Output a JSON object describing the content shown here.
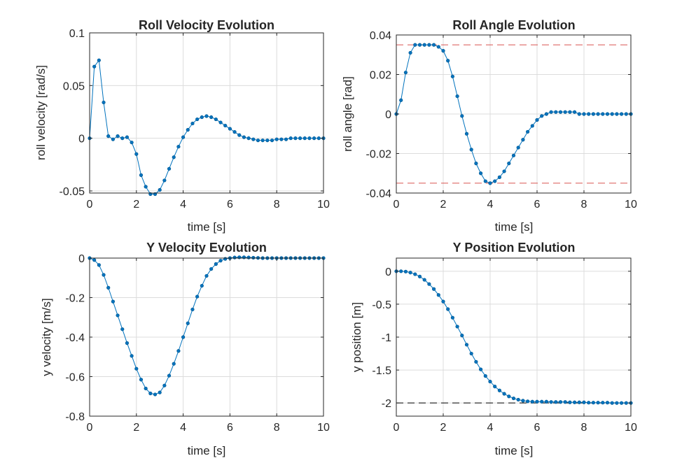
{
  "figure": {
    "colors": {
      "series": "#0072bd",
      "limit_red": "#d95350",
      "reference": "#000000",
      "grid": "#dcdcdc",
      "axes": "#262626"
    }
  },
  "chart_data": [
    {
      "type": "line",
      "title": "Roll Velocity Evolution",
      "xlabel": "time [s]",
      "ylabel": "roll velocity [rad/s]",
      "xlim": [
        0,
        10
      ],
      "ylim": [
        -0.052,
        0.1
      ],
      "xticks": [
        0,
        2,
        4,
        6,
        8,
        10
      ],
      "xtick_labels": [
        "0",
        "2",
        "4",
        "6",
        "8",
        "10"
      ],
      "yticks": [
        -0.05,
        0,
        0.05,
        0.1
      ],
      "ytick_labels": [
        "-0.05",
        "0",
        "0.05",
        "0.1"
      ],
      "grid": true,
      "marker": "dot",
      "x": [
        0,
        0.2,
        0.4,
        0.6,
        0.8,
        1.0,
        1.2,
        1.4,
        1.6,
        1.8,
        2.0,
        2.2,
        2.4,
        2.6,
        2.8,
        3.0,
        3.2,
        3.4,
        3.6,
        3.8,
        4.0,
        4.2,
        4.4,
        4.6,
        4.8,
        5.0,
        5.2,
        5.4,
        5.6,
        5.8,
        6.0,
        6.2,
        6.4,
        6.6,
        6.8,
        7.0,
        7.2,
        7.4,
        7.6,
        7.8,
        8.0,
        8.2,
        8.4,
        8.6,
        8.8,
        9.0,
        9.2,
        9.4,
        9.6,
        9.8,
        10.0
      ],
      "y": [
        0,
        0.068,
        0.074,
        0.034,
        0.002,
        -0.001,
        0.002,
        0,
        0.001,
        -0.004,
        -0.015,
        -0.035,
        -0.046,
        -0.053,
        -0.053,
        -0.049,
        -0.04,
        -0.029,
        -0.018,
        -0.008,
        0.001,
        0.008,
        0.014,
        0.018,
        0.02,
        0.021,
        0.02,
        0.018,
        0.015,
        0.012,
        0.009,
        0.006,
        0.003,
        0.001,
        0,
        -0.001,
        -0.002,
        -0.002,
        -0.002,
        -0.002,
        -0.001,
        -0.001,
        -0.001,
        0,
        0,
        0,
        0,
        0,
        0,
        0,
        0
      ],
      "reference_lines": []
    },
    {
      "type": "line",
      "title": "Roll Angle Evolution",
      "xlabel": "time [s]",
      "ylabel": "roll angle [rad]",
      "xlim": [
        0,
        10
      ],
      "ylim": [
        -0.04,
        0.04
      ],
      "xticks": [
        0,
        2,
        4,
        6,
        8,
        10
      ],
      "xtick_labels": [
        "0",
        "2",
        "4",
        "6",
        "8",
        "10"
      ],
      "yticks": [
        -0.04,
        -0.02,
        0,
        0.02,
        0.04
      ],
      "ytick_labels": [
        "-0.04",
        "-0.02",
        "0",
        "0.02",
        "0.04"
      ],
      "grid": true,
      "marker": "dot",
      "x": [
        0,
        0.2,
        0.4,
        0.6,
        0.8,
        1.0,
        1.2,
        1.4,
        1.6,
        1.8,
        2.0,
        2.2,
        2.4,
        2.6,
        2.8,
        3.0,
        3.2,
        3.4,
        3.6,
        3.8,
        4.0,
        4.2,
        4.4,
        4.6,
        4.8,
        5.0,
        5.2,
        5.4,
        5.6,
        5.8,
        6.0,
        6.2,
        6.4,
        6.6,
        6.8,
        7.0,
        7.2,
        7.4,
        7.6,
        7.8,
        8.0,
        8.2,
        8.4,
        8.6,
        8.8,
        9.0,
        9.2,
        9.4,
        9.6,
        9.8,
        10.0
      ],
      "y": [
        0,
        0.007,
        0.021,
        0.031,
        0.035,
        0.035,
        0.035,
        0.035,
        0.035,
        0.034,
        0.032,
        0.027,
        0.019,
        0.009,
        -0.001,
        -0.01,
        -0.018,
        -0.025,
        -0.03,
        -0.034,
        -0.035,
        -0.034,
        -0.032,
        -0.029,
        -0.025,
        -0.021,
        -0.017,
        -0.013,
        -0.009,
        -0.006,
        -0.003,
        -0.001,
        0.0,
        0.001,
        0.001,
        0.001,
        0.001,
        0.001,
        0.001,
        0.0,
        0.0,
        0.0,
        0.0,
        0.0,
        0.0,
        0.0,
        0.0,
        0.0,
        0.0,
        0.0,
        0.0
      ],
      "reference_lines": [
        {
          "y": 0.035,
          "color": "#d95350",
          "style": "dashed"
        },
        {
          "y": -0.035,
          "color": "#d95350",
          "style": "dashed"
        }
      ]
    },
    {
      "type": "line",
      "title": "Y Velocity Evolution",
      "xlabel": "time [s]",
      "ylabel": "y velocity [m/s]",
      "xlim": [
        0,
        10
      ],
      "ylim": [
        -0.8,
        0
      ],
      "xticks": [
        0,
        2,
        4,
        6,
        8,
        10
      ],
      "xtick_labels": [
        "0",
        "2",
        "4",
        "6",
        "8",
        "10"
      ],
      "yticks": [
        -0.8,
        -0.6,
        -0.4,
        -0.2,
        0
      ],
      "ytick_labels": [
        "-0.8",
        "-0.6",
        "-0.4",
        "-0.2",
        "0"
      ],
      "grid": true,
      "marker": "dot",
      "x": [
        0,
        0.2,
        0.4,
        0.6,
        0.8,
        1.0,
        1.2,
        1.4,
        1.6,
        1.8,
        2.0,
        2.2,
        2.4,
        2.6,
        2.8,
        3.0,
        3.2,
        3.4,
        3.6,
        3.8,
        4.0,
        4.2,
        4.4,
        4.6,
        4.8,
        5.0,
        5.2,
        5.4,
        5.6,
        5.8,
        6.0,
        6.2,
        6.4,
        6.6,
        6.8,
        7.0,
        7.2,
        7.4,
        7.6,
        7.8,
        8.0,
        8.2,
        8.4,
        8.6,
        8.8,
        9.0,
        9.2,
        9.4,
        9.6,
        9.8,
        10.0
      ],
      "y": [
        0,
        -0.01,
        -0.035,
        -0.085,
        -0.15,
        -0.22,
        -0.29,
        -0.36,
        -0.43,
        -0.495,
        -0.56,
        -0.615,
        -0.66,
        -0.685,
        -0.69,
        -0.68,
        -0.645,
        -0.595,
        -0.535,
        -0.47,
        -0.4,
        -0.33,
        -0.26,
        -0.195,
        -0.14,
        -0.09,
        -0.055,
        -0.03,
        -0.013,
        -0.004,
        0,
        0.003,
        0.004,
        0.004,
        0.003,
        0.002,
        0.001,
        0,
        0,
        0,
        0,
        0,
        0,
        0,
        0,
        0,
        0,
        0,
        0,
        0,
        0
      ],
      "reference_lines": []
    },
    {
      "type": "line",
      "title": "Y Position Evolution",
      "xlabel": "time [s]",
      "ylabel": "y position [m]",
      "xlim": [
        0,
        10
      ],
      "ylim": [
        -2.2,
        0.2
      ],
      "xticks": [
        0,
        2,
        4,
        6,
        8,
        10
      ],
      "xtick_labels": [
        "0",
        "2",
        "4",
        "6",
        "8",
        "10"
      ],
      "yticks": [
        -2,
        -1.5,
        -1,
        -0.5,
        0
      ],
      "ytick_labels": [
        "-2",
        "-1.5",
        "-1",
        "-0.5",
        "0"
      ],
      "grid": true,
      "marker": "dot",
      "x": [
        0,
        0.2,
        0.4,
        0.6,
        0.8,
        1.0,
        1.2,
        1.4,
        1.6,
        1.8,
        2.0,
        2.2,
        2.4,
        2.6,
        2.8,
        3.0,
        3.2,
        3.4,
        3.6,
        3.8,
        4.0,
        4.2,
        4.4,
        4.6,
        4.8,
        5.0,
        5.2,
        5.4,
        5.6,
        5.8,
        6.0,
        6.2,
        6.4,
        6.6,
        6.8,
        7.0,
        7.2,
        7.4,
        7.6,
        7.8,
        8.0,
        8.2,
        8.4,
        8.6,
        8.8,
        9.0,
        9.2,
        9.4,
        9.6,
        9.8,
        10.0
      ],
      "y": [
        0,
        0,
        -0.005,
        -0.02,
        -0.045,
        -0.08,
        -0.13,
        -0.195,
        -0.27,
        -0.36,
        -0.46,
        -0.575,
        -0.705,
        -0.84,
        -0.975,
        -1.115,
        -1.25,
        -1.375,
        -1.49,
        -1.59,
        -1.675,
        -1.75,
        -1.81,
        -1.86,
        -1.9,
        -1.93,
        -1.95,
        -1.965,
        -1.975,
        -1.98,
        -1.98,
        -1.98,
        -1.98,
        -1.985,
        -1.985,
        -1.985,
        -1.985,
        -1.99,
        -1.99,
        -1.99,
        -1.99,
        -1.995,
        -1.995,
        -1.995,
        -1.995,
        -1.995,
        -2.0,
        -2.0,
        -2.0,
        -2.0,
        -2.0
      ],
      "reference_lines": [
        {
          "y": -2,
          "color": "#000000",
          "style": "dashed"
        }
      ]
    }
  ]
}
